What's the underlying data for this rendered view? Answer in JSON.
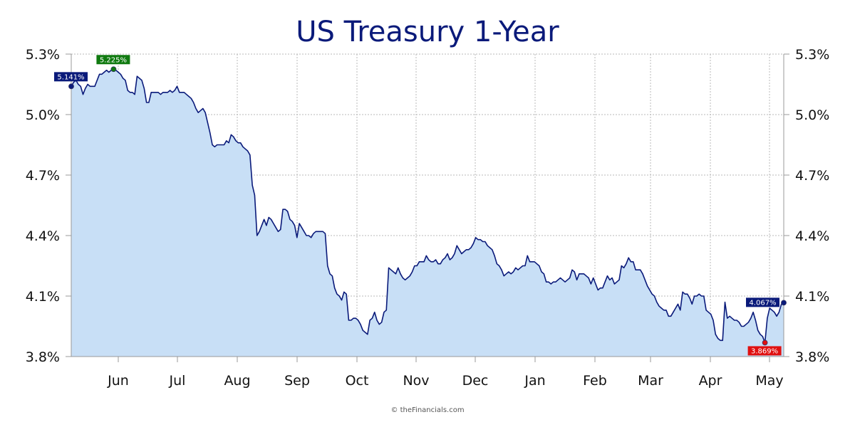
{
  "chart_data": {
    "type": "area",
    "title": "US Treasury 1-Year",
    "xlabel": "",
    "ylabel": "",
    "ylim": [
      3.8,
      5.3
    ],
    "y_ticks": [
      5.3,
      5.0,
      4.7,
      4.4,
      4.1,
      3.8
    ],
    "y_tick_labels": [
      "5.3%",
      "5.0%",
      "4.7%",
      "4.4%",
      "4.1%",
      "3.8%"
    ],
    "y_axis_sides": "both",
    "x_tick_labels": [
      "Jun",
      "Jul",
      "Aug",
      "Sep",
      "Oct",
      "Nov",
      "Dec",
      "Jan",
      "Feb",
      "Mar",
      "Apr",
      "May"
    ],
    "x_range": [
      "May 2024",
      "May 2025"
    ],
    "grid": true,
    "legend": "none",
    "line_color": "#0a1a7a",
    "fill_color": "#c8dff6",
    "series": [
      {
        "values": [
          5.14,
          5.16,
          5.17,
          5.15,
          5.14,
          5.1,
          5.13,
          5.15,
          5.14,
          5.14,
          5.14,
          5.17,
          5.2,
          5.2,
          5.21,
          5.22,
          5.21,
          5.22,
          5.225,
          5.22,
          5.21,
          5.2,
          5.18,
          5.17,
          5.12,
          5.11,
          5.11,
          5.1,
          5.19,
          5.18,
          5.17,
          5.13,
          5.06,
          5.06,
          5.11,
          5.11,
          5.11,
          5.11,
          5.1,
          5.11,
          5.11,
          5.11,
          5.12,
          5.11,
          5.12,
          5.14,
          5.11,
          5.11,
          5.11,
          5.1,
          5.09,
          5.08,
          5.06,
          5.03,
          5.01,
          5.02,
          5.03,
          5.01,
          4.96,
          4.91,
          4.85,
          4.84,
          4.85,
          4.85,
          4.85,
          4.85,
          4.87,
          4.86,
          4.9,
          4.89,
          4.87,
          4.86,
          4.86,
          4.84,
          4.83,
          4.82,
          4.8,
          4.65,
          4.6,
          4.4,
          4.42,
          4.45,
          4.48,
          4.45,
          4.49,
          4.48,
          4.46,
          4.44,
          4.42,
          4.43,
          4.53,
          4.53,
          4.52,
          4.48,
          4.47,
          4.45,
          4.39,
          4.46,
          4.44,
          4.42,
          4.4,
          4.4,
          4.39,
          4.41,
          4.42,
          4.42,
          4.42,
          4.42,
          4.41,
          4.25,
          4.21,
          4.2,
          4.14,
          4.11,
          4.1,
          4.08,
          4.12,
          4.11,
          3.98,
          3.98,
          3.99,
          3.99,
          3.98,
          3.96,
          3.93,
          3.92,
          3.91,
          3.98,
          3.99,
          4.02,
          3.98,
          3.96,
          3.97,
          4.02,
          4.03,
          4.24,
          4.23,
          4.22,
          4.21,
          4.24,
          4.21,
          4.19,
          4.18,
          4.19,
          4.2,
          4.22,
          4.25,
          4.25,
          4.27,
          4.27,
          4.27,
          4.3,
          4.28,
          4.27,
          4.27,
          4.28,
          4.26,
          4.26,
          4.28,
          4.29,
          4.31,
          4.28,
          4.29,
          4.31,
          4.35,
          4.33,
          4.31,
          4.32,
          4.33,
          4.33,
          4.34,
          4.36,
          4.39,
          4.38,
          4.38,
          4.37,
          4.37,
          4.35,
          4.34,
          4.33,
          4.3,
          4.26,
          4.25,
          4.23,
          4.2,
          4.21,
          4.22,
          4.21,
          4.22,
          4.24,
          4.23,
          4.24,
          4.25,
          4.25,
          4.3,
          4.27,
          4.27,
          4.27,
          4.26,
          4.25,
          4.22,
          4.21,
          4.17,
          4.17,
          4.16,
          4.17,
          4.17,
          4.18,
          4.19,
          4.18,
          4.17,
          4.18,
          4.19,
          4.23,
          4.22,
          4.18,
          4.21,
          4.21,
          4.21,
          4.2,
          4.19,
          4.16,
          4.19,
          4.16,
          4.13,
          4.14,
          4.14,
          4.17,
          4.2,
          4.18,
          4.19,
          4.16,
          4.17,
          4.18,
          4.25,
          4.24,
          4.26,
          4.29,
          4.27,
          4.27,
          4.23,
          4.23,
          4.23,
          4.21,
          4.18,
          4.15,
          4.13,
          4.11,
          4.1,
          4.07,
          4.05,
          4.04,
          4.03,
          4.03,
          4.0,
          4.0,
          4.02,
          4.04,
          4.06,
          4.03,
          4.12,
          4.11,
          4.11,
          4.09,
          4.06,
          4.1,
          4.1,
          4.11,
          4.1,
          4.1,
          4.03,
          4.02,
          4.01,
          3.98,
          3.91,
          3.89,
          3.88,
          3.88,
          4.07,
          3.99,
          4.0,
          3.99,
          3.98,
          3.98,
          3.97,
          3.95,
          3.95,
          3.96,
          3.97,
          3.99,
          4.02,
          3.98,
          3.93,
          3.91,
          3.9,
          3.869,
          3.99,
          4.04,
          4.03,
          4.02,
          4.0,
          4.02,
          4.06,
          4.067
        ]
      }
    ],
    "annotations": [
      {
        "label": "5.141%",
        "value": 5.141,
        "point": "start",
        "color": "#0a1a7a"
      },
      {
        "label": "5.225%",
        "value": 5.225,
        "point": "high",
        "color": "#107a10"
      },
      {
        "label": "3.869%",
        "value": 3.869,
        "point": "low",
        "color": "#e01010"
      },
      {
        "label": "4.067%",
        "value": 4.067,
        "point": "last",
        "color": "#0a1a7a"
      }
    ],
    "credit": "© theFinancials.com"
  }
}
